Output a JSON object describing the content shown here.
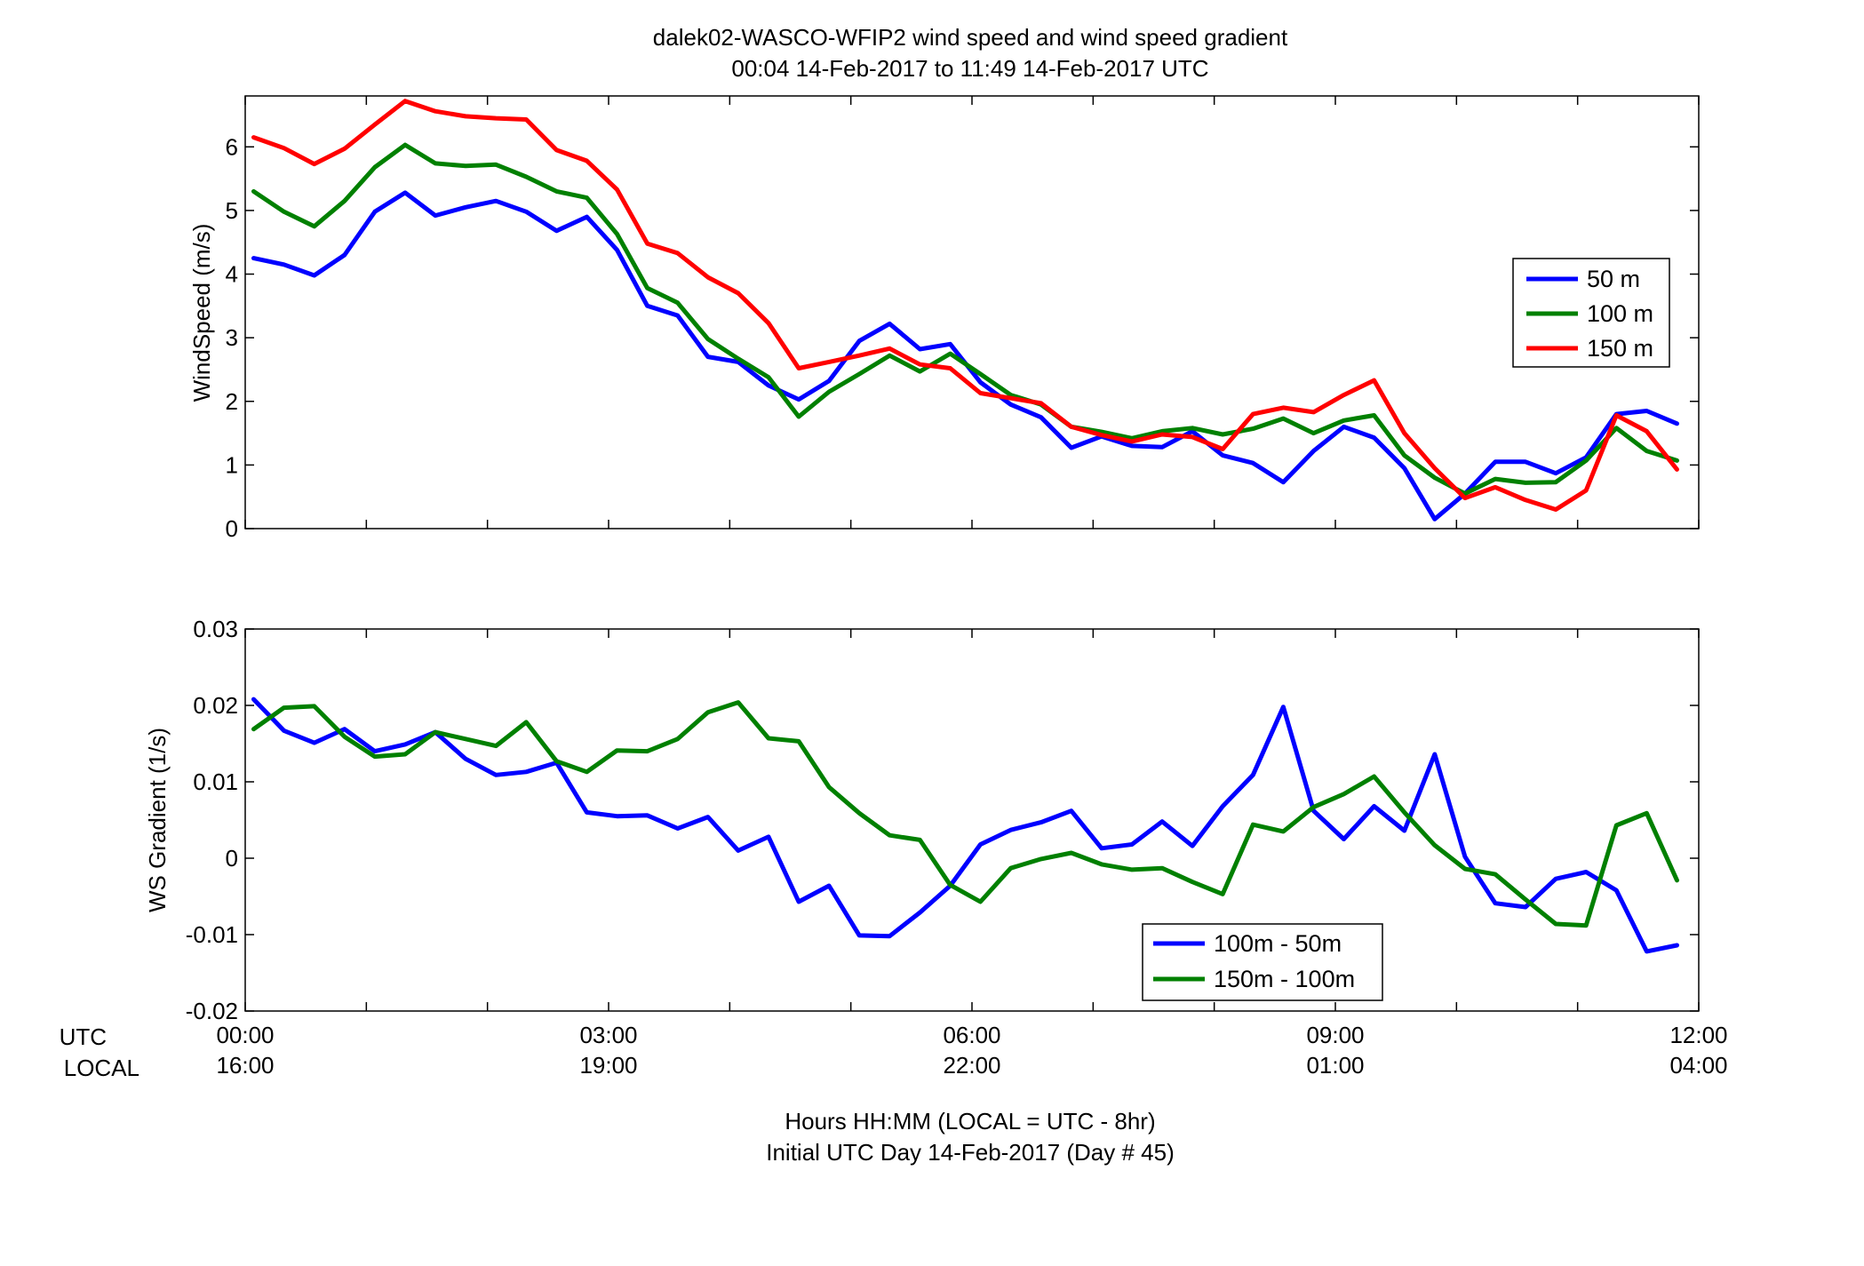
{
  "figure": {
    "title_line1": "dalek02-WASCO-WFIP2  wind speed and wind speed gradient",
    "title_line2": "00:04 14-Feb-2017 to 11:49 14-Feb-2017  UTC",
    "utc_row_label": "UTC",
    "local_row_label": "LOCAL",
    "xlabel_line1": "Hours HH:MM  (LOCAL = UTC - 8hr)",
    "xlabel_line2": "Initial UTC Day 14-Feb-2017 (Day # 45)",
    "x_ticks_utc": [
      "00:00",
      "03:00",
      "06:00",
      "09:00",
      "12:00"
    ],
    "x_ticks_local": [
      "16:00",
      "19:00",
      "22:00",
      "01:00",
      "04:00"
    ]
  },
  "chart_data": [
    {
      "type": "line",
      "ylabel": "WindSpeed (m/s)",
      "xlim": [
        0,
        12
      ],
      "ylim": [
        0,
        6.8
      ],
      "yticks": [
        0,
        1,
        2,
        3,
        4,
        5,
        6
      ],
      "ytick_labels": [
        "0",
        "1",
        "2",
        "3",
        "4",
        "5",
        "6"
      ],
      "x": [
        0.07,
        0.32,
        0.57,
        0.82,
        1.07,
        1.32,
        1.57,
        1.82,
        2.07,
        2.32,
        2.57,
        2.82,
        3.07,
        3.32,
        3.57,
        3.82,
        4.07,
        4.32,
        4.57,
        4.82,
        5.07,
        5.32,
        5.57,
        5.82,
        6.07,
        6.32,
        6.57,
        6.82,
        7.07,
        7.32,
        7.57,
        7.82,
        8.07,
        8.32,
        8.57,
        8.82,
        9.07,
        9.32,
        9.57,
        9.82,
        10.07,
        10.32,
        10.57,
        10.82,
        11.07,
        11.32,
        11.57,
        11.82
      ],
      "legend_position": "right",
      "series": [
        {
          "name": "50 m",
          "color": "#0000ff",
          "values": [
            4.25,
            4.15,
            3.98,
            4.3,
            4.98,
            5.28,
            4.92,
            5.05,
            5.15,
            4.98,
            4.68,
            4.9,
            4.38,
            3.5,
            3.35,
            2.7,
            2.62,
            2.25,
            2.03,
            2.32,
            2.95,
            3.22,
            2.82,
            2.9,
            2.3,
            1.95,
            1.75,
            1.27,
            1.45,
            1.3,
            1.28,
            1.53,
            1.15,
            1.03,
            0.73,
            1.22,
            1.6,
            1.43,
            0.95,
            0.15,
            0.55,
            1.05,
            1.05,
            0.87,
            1.12,
            1.8,
            1.85,
            1.65
          ]
        },
        {
          "name": "100 m",
          "color": "#008000",
          "values": [
            5.3,
            4.98,
            4.75,
            5.15,
            5.68,
            6.03,
            5.74,
            5.7,
            5.72,
            5.53,
            5.3,
            5.2,
            4.63,
            3.78,
            3.55,
            2.98,
            2.67,
            2.38,
            1.76,
            2.15,
            2.43,
            2.72,
            2.47,
            2.75,
            2.43,
            2.1,
            1.95,
            1.6,
            1.52,
            1.42,
            1.53,
            1.58,
            1.48,
            1.57,
            1.73,
            1.5,
            1.7,
            1.78,
            1.15,
            0.8,
            0.55,
            0.78,
            0.72,
            0.73,
            1.07,
            1.58,
            1.22,
            1.07
          ]
        },
        {
          "name": "150 m",
          "color": "#ff0000",
          "values": [
            6.15,
            5.98,
            5.73,
            5.97,
            6.35,
            6.72,
            6.56,
            6.48,
            6.45,
            6.43,
            5.95,
            5.78,
            5.33,
            4.48,
            4.33,
            3.95,
            3.7,
            3.23,
            2.52,
            2.62,
            2.72,
            2.83,
            2.58,
            2.52,
            2.13,
            2.05,
            1.97,
            1.6,
            1.47,
            1.37,
            1.48,
            1.44,
            1.25,
            1.8,
            1.9,
            1.83,
            2.1,
            2.33,
            1.5,
            0.95,
            0.48,
            0.65,
            0.45,
            0.3,
            0.6,
            1.78,
            1.53,
            0.93
          ]
        }
      ]
    },
    {
      "type": "line",
      "ylabel": "WS Gradient (1/s)",
      "xlim": [
        0,
        12
      ],
      "ylim": [
        -0.02,
        0.03
      ],
      "yticks": [
        -0.02,
        -0.01,
        0,
        0.01,
        0.02,
        0.03
      ],
      "ytick_labels": [
        "-0.02",
        "-0.01",
        "0",
        "0.01",
        "0.02",
        "0.03"
      ],
      "x": [
        0.07,
        0.32,
        0.57,
        0.82,
        1.07,
        1.32,
        1.57,
        1.82,
        2.07,
        2.32,
        2.57,
        2.82,
        3.07,
        3.32,
        3.57,
        3.82,
        4.07,
        4.32,
        4.57,
        4.82,
        5.07,
        5.32,
        5.57,
        5.82,
        6.07,
        6.32,
        6.57,
        6.82,
        7.07,
        7.32,
        7.57,
        7.82,
        8.07,
        8.32,
        8.57,
        8.82,
        9.07,
        9.32,
        9.57,
        9.82,
        10.07,
        10.32,
        10.57,
        10.82,
        11.07,
        11.32,
        11.57,
        11.82
      ],
      "legend_position": "bottom-right",
      "series": [
        {
          "name": "100m - 50m",
          "color": "#0000ff",
          "values": [
            0.0208,
            0.0167,
            0.0151,
            0.0169,
            0.014,
            0.0149,
            0.0165,
            0.013,
            0.0109,
            0.0113,
            0.0125,
            0.006,
            0.0055,
            0.0056,
            0.0039,
            0.0054,
            0.001,
            0.0028,
            -0.0057,
            -0.0036,
            -0.0101,
            -0.0102,
            -0.0071,
            -0.0036,
            0.0018,
            0.0037,
            0.0047,
            0.0062,
            0.0013,
            0.0018,
            0.0048,
            0.0016,
            0.0068,
            0.0109,
            0.0198,
            0.0062,
            0.0025,
            0.0068,
            0.0036,
            0.0136,
            0.0002,
            -0.0059,
            -0.0064,
            -0.0027,
            -0.0018,
            -0.0042,
            -0.0122,
            -0.0114
          ]
        },
        {
          "name": "150m - 100m",
          "color": "#008000",
          "values": [
            0.0169,
            0.0197,
            0.0199,
            0.0159,
            0.0133,
            0.0136,
            0.0165,
            0.0156,
            0.0147,
            0.0178,
            0.0127,
            0.0113,
            0.0141,
            0.014,
            0.0156,
            0.0191,
            0.0204,
            0.0157,
            0.0153,
            0.0093,
            0.0059,
            0.003,
            0.0024,
            -0.0035,
            -0.0057,
            -0.0013,
            -0.0001,
            0.0007,
            -0.0008,
            -0.0015,
            -0.0013,
            -0.0031,
            -0.0047,
            0.0044,
            0.0035,
            0.0067,
            0.0084,
            0.0107,
            0.006,
            0.0017,
            -0.0014,
            -0.0021,
            -0.0054,
            -0.0086,
            -0.0088,
            0.0043,
            0.0059,
            -0.0029
          ]
        }
      ]
    }
  ]
}
